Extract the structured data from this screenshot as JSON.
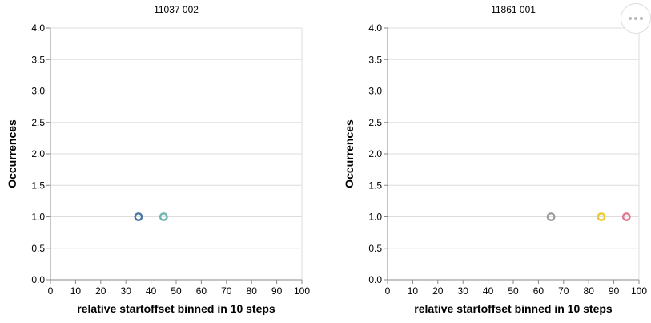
{
  "chart_data": [
    {
      "type": "scatter",
      "title": "11037 002",
      "xlabel": "relative startoffset binned in 10 steps",
      "ylabel": "Occurrences",
      "xlim": [
        0,
        100
      ],
      "ylim": [
        0,
        4
      ],
      "xticks": [
        "0",
        "10",
        "20",
        "30",
        "40",
        "50",
        "60",
        "70",
        "80",
        "90",
        "100"
      ],
      "yticks": [
        "0.0",
        "0.5",
        "1.0",
        "1.5",
        "2.0",
        "2.5",
        "3.0",
        "3.5",
        "4.0"
      ],
      "grid": "horizontal",
      "points": [
        {
          "x": 35,
          "y": 1,
          "color": "#4c78a8"
        },
        {
          "x": 45,
          "y": 1,
          "color": "#72b7b2"
        }
      ]
    },
    {
      "type": "scatter",
      "title": "11861 001",
      "xlabel": "relative startoffset binned in 10 steps",
      "ylabel": "Occurrences",
      "xlim": [
        0,
        100
      ],
      "ylim": [
        0,
        4
      ],
      "xticks": [
        "0",
        "10",
        "20",
        "30",
        "40",
        "50",
        "60",
        "70",
        "80",
        "90",
        "100"
      ],
      "yticks": [
        "0.0",
        "0.5",
        "1.0",
        "1.5",
        "2.0",
        "2.5",
        "3.0",
        "3.5",
        "4.0"
      ],
      "grid": "horizontal",
      "points": [
        {
          "x": 65,
          "y": 1,
          "color": "#9d9d9d"
        },
        {
          "x": 85,
          "y": 1,
          "color": "#eeca3b"
        },
        {
          "x": 95,
          "y": 1,
          "color": "#e4788f"
        }
      ]
    }
  ],
  "toolbar": {
    "more_icon": "more-horizontal-icon"
  }
}
